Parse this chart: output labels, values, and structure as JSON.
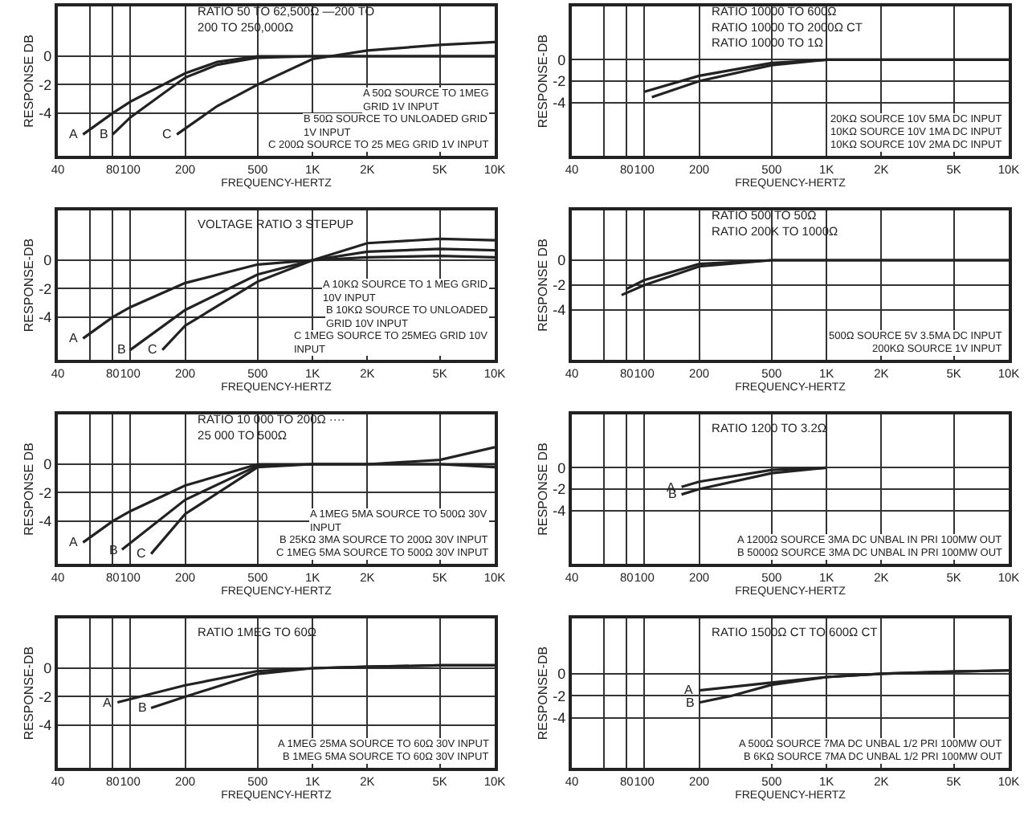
{
  "chart_data": [
    {
      "type": "line",
      "title": "RATIO 50 TO 62,500Ω —200 TO\n200 TO 250,000Ω",
      "xlabel": "FREQUENCY-HERTZ",
      "ylabel": "RESPONSE DB",
      "log": "x",
      "grid": true,
      "legend": false,
      "xlim": [
        40,
        10000
      ],
      "xticks": [
        40,
        {
          "value": 60,
          "label": null
        },
        80,
        100,
        200,
        500,
        {
          "value": 1000,
          "label": "1K"
        },
        {
          "value": 2000,
          "label": "2K"
        },
        {
          "value": 5000,
          "label": "5K"
        },
        {
          "value": 10000,
          "label": "10K"
        }
      ],
      "ylim": [
        -7,
        3.5
      ],
      "yticks": [
        -4,
        -2,
        0
      ],
      "series": [
        {
          "name": "A",
          "color": "#222222",
          "x": [
            55,
            80,
            100,
            200,
            300,
            500,
            1000,
            2000,
            5000,
            10000
          ],
          "values": [
            -5.5,
            -4,
            -3.2,
            -1.2,
            -0.4,
            0,
            0,
            0,
            0,
            0
          ]
        },
        {
          "name": "B",
          "color": "#222222",
          "x": [
            80,
            100,
            200,
            300,
            500,
            1000,
            2000,
            5000,
            10000
          ],
          "values": [
            -5.5,
            -4.3,
            -1.5,
            -0.6,
            -0.1,
            0,
            0,
            0,
            0
          ]
        },
        {
          "name": "C",
          "color": "#222222",
          "x": [
            180,
            300,
            500,
            1000,
            2000,
            5000,
            10000
          ],
          "values": [
            -5.5,
            -3.5,
            -2,
            -0.2,
            0.4,
            0.8,
            1
          ]
        }
      ],
      "annotations": [
        "A 50Ω SOURCE TO 1MEG\nGRID 1V INPUT",
        "B 50Ω SOURCE TO UNLOADED GRID\n1V INPUT",
        "C 200Ω SOURCE TO 25 MEG GRID 1V INPUT"
      ]
    },
    {
      "type": "line",
      "title": "RATIO 10000 TO 600Ω\nRATIO 10000 TO 2000Ω CT\nRATIO 10000 TO 1Ω",
      "xlabel": "FREQUENCY-HERTZ",
      "ylabel": "RESPONSE-DB",
      "log": "x",
      "grid": true,
      "legend": false,
      "xlim": [
        40,
        10000
      ],
      "xticks": [
        40,
        {
          "value": 60,
          "label": null
        },
        80,
        100,
        200,
        500,
        {
          "value": 1000,
          "label": "1K"
        },
        {
          "value": 2000,
          "label": "2K"
        },
        {
          "value": 5000,
          "label": "5K"
        },
        {
          "value": 10000,
          "label": "10K"
        }
      ],
      "ylim": [
        -9,
        5
      ],
      "yticks": [
        -4,
        -2,
        0
      ],
      "series": [
        {
          "color": "#222222",
          "x": [
            100,
            200,
            500,
            1000,
            2000,
            5000,
            10000
          ],
          "values": [
            -3,
            -1.5,
            -0.3,
            0,
            0,
            0,
            0
          ]
        },
        {
          "color": "#222222",
          "x": [
            110,
            200,
            500,
            1000,
            2000,
            5000,
            10000
          ],
          "values": [
            -3.5,
            -2,
            -0.5,
            0,
            0,
            0,
            0
          ]
        }
      ],
      "annotations": [
        "20KΩ SOURCE 10V 5MA DC INPUT",
        "10KΩ SOURCE 10V 1MA DC INPUT",
        "10KΩ SOURCE 10V 2MA DC INPUT"
      ]
    },
    {
      "type": "line",
      "title": "VOLTAGE RATIO 3 STEPUP",
      "xlabel": "FREQUENCY-HERTZ",
      "ylabel": "RESPONSE-DB",
      "log": "x",
      "grid": true,
      "legend": false,
      "xlim": [
        40,
        10000
      ],
      "xticks": [
        40,
        {
          "value": 60,
          "label": null
        },
        80,
        100,
        200,
        500,
        {
          "value": 1000,
          "label": "1K"
        },
        {
          "value": 2000,
          "label": "2K"
        },
        {
          "value": 5000,
          "label": "5K"
        },
        {
          "value": 10000,
          "label": "10K"
        }
      ],
      "ylim": [
        -7,
        3.5
      ],
      "yticks": [
        -4,
        -2,
        0
      ],
      "series": [
        {
          "name": "A",
          "color": "#222222",
          "x": [
            55,
            80,
            100,
            200,
            500,
            1000,
            2000,
            5000,
            10000
          ],
          "values": [
            -5.5,
            -4,
            -3.3,
            -1.6,
            -0.3,
            0,
            0.2,
            0.3,
            0.2
          ]
        },
        {
          "name": "B",
          "color": "#222222",
          "x": [
            100,
            200,
            500,
            1000,
            2000,
            5000,
            10000
          ],
          "values": [
            -6.3,
            -3.5,
            -1,
            0,
            0.6,
            0.8,
            0.7
          ]
        },
        {
          "name": "C",
          "color": "#222222",
          "x": [
            150,
            200,
            500,
            1000,
            2000,
            5000,
            10000
          ],
          "values": [
            -6.3,
            -4.6,
            -1.5,
            0,
            1.2,
            1.5,
            1.4
          ]
        }
      ],
      "annotations": [
        "A 10KΩ SOURCE TO 1 MEG GRID\n10V INPUT",
        "B 10KΩ SOURCE TO UNLOADED\nGRID 10V INPUT",
        "C 1MEG SOURCE TO 25MEG GRID 10V\nINPUT"
      ]
    },
    {
      "type": "line",
      "title": "RATIO 500 TO 50Ω\nRATIO 200K TO 1000Ω",
      "xlabel": "FREQUENCY-HERTZ",
      "ylabel": "RESPONSE DB",
      "log": "x",
      "grid": true,
      "legend": false,
      "xlim": [
        40,
        10000
      ],
      "xticks": [
        40,
        {
          "value": 60,
          "label": null
        },
        80,
        100,
        200,
        500,
        {
          "value": 1000,
          "label": "1K"
        },
        {
          "value": 2000,
          "label": "2K"
        },
        {
          "value": 5000,
          "label": "5K"
        },
        {
          "value": 10000,
          "label": "10K"
        }
      ],
      "ylim": [
        -8,
        4
      ],
      "yticks": [
        -4,
        -2,
        0
      ],
      "series": [
        {
          "color": "#222222",
          "x": [
            75,
            100,
            200,
            500,
            1000,
            2000,
            5000,
            10000
          ],
          "values": [
            -2.8,
            -2,
            -0.5,
            0,
            0,
            0,
            0,
            0
          ]
        },
        {
          "color": "#222222",
          "x": [
            80,
            100,
            200,
            500,
            1000,
            2000,
            5000,
            10000
          ],
          "values": [
            -2.3,
            -1.6,
            -0.3,
            0,
            0,
            0,
            0,
            0
          ]
        }
      ],
      "annotations": [
        "500Ω SOURCE 5V 3.5MA DC INPUT",
        "200KΩ SOURCE 1V INPUT"
      ]
    },
    {
      "type": "line",
      "title": "RATIO 10 000 TO 200Ω ····\n25 000 TO 500Ω",
      "xlabel": "FREQUENCY-HERTZ",
      "ylabel": "RESPONSE DB",
      "log": "x",
      "grid": true,
      "legend": false,
      "xlim": [
        40,
        10000
      ],
      "xticks": [
        40,
        {
          "value": 60,
          "label": null
        },
        80,
        100,
        200,
        500,
        {
          "value": 1000,
          "label": "1K"
        },
        {
          "value": 2000,
          "label": "2K"
        },
        {
          "value": 5000,
          "label": "5K"
        },
        {
          "value": 10000,
          "label": "10K"
        }
      ],
      "ylim": [
        -7,
        3.5
      ],
      "yticks": [
        -4,
        -2,
        0
      ],
      "series": [
        {
          "name": "A",
          "color": "#222222",
          "x": [
            55,
            80,
            100,
            200,
            500,
            1000,
            2000,
            5000,
            10000
          ],
          "values": [
            -5.5,
            -4,
            -3.3,
            -1.5,
            0,
            0,
            0,
            0,
            -0.2
          ]
        },
        {
          "name": "B",
          "color": "#222222",
          "x": [
            90,
            200,
            500,
            1000,
            2000,
            5000,
            10000
          ],
          "values": [
            -6,
            -2.5,
            -0.1,
            0,
            0,
            0,
            0
          ]
        },
        {
          "name": "C",
          "color": "#222222",
          "x": [
            130,
            200,
            500,
            1000,
            2000,
            5000,
            10000
          ],
          "values": [
            -6.3,
            -3.5,
            -0.2,
            0,
            0,
            0.3,
            1.2
          ]
        }
      ],
      "annotations": [
        "A 1MEG 5MA SOURCE TO 500Ω 30V\nINPUT",
        "B 25KΩ 3MA SOURCE TO 200Ω 30V INPUT",
        "C 1MEG 5MA SOURCE TO 500Ω 30V INPUT"
      ]
    },
    {
      "type": "line",
      "title": "RATIO 1200 TO 3.2Ω",
      "xlabel": "FREQUENCY-HERTZ",
      "ylabel": "RESPONSE DB",
      "log": "x",
      "grid": true,
      "legend": false,
      "xlim": [
        40,
        10000
      ],
      "xticks": [
        40,
        {
          "value": 60,
          "label": null
        },
        80,
        100,
        200,
        500,
        {
          "value": 1000,
          "label": "1K"
        },
        {
          "value": 2000,
          "label": "2K"
        },
        {
          "value": 5000,
          "label": "5K"
        },
        {
          "value": 10000,
          "label": "10K"
        }
      ],
      "ylim": [
        -9,
        5
      ],
      "yticks": [
        -4,
        -2,
        0
      ],
      "series": [
        {
          "name": "A",
          "color": "#222222",
          "x": [
            160,
            200,
            500,
            1000
          ],
          "values": [
            -1.8,
            -1.3,
            -0.2,
            0
          ]
        },
        {
          "name": "B",
          "color": "#222222",
          "x": [
            160,
            200,
            500,
            1000
          ],
          "values": [
            -2.5,
            -2,
            -0.5,
            0
          ]
        }
      ],
      "annotations": [
        "A 1200Ω SOURCE 3MA DC UNBAL IN PRI 100MW OUT",
        "B 5000Ω SOURCE 3MA DC UNBAL IN PRI 100MW OUT"
      ]
    },
    {
      "type": "line",
      "title": "RATIO 1MEG TO 60Ω",
      "xlabel": "FREQUENCY-HERTZ",
      "ylabel": "RESPONSE-DB",
      "log": "x",
      "grid": true,
      "legend": false,
      "xlim": [
        40,
        10000
      ],
      "xticks": [
        40,
        {
          "value": 60,
          "label": null
        },
        80,
        100,
        200,
        500,
        {
          "value": 1000,
          "label": "1K"
        },
        {
          "value": 2000,
          "label": "2K"
        },
        {
          "value": 5000,
          "label": "5K"
        },
        {
          "value": 10000,
          "label": "10K"
        }
      ],
      "ylim": [
        -7,
        3.5
      ],
      "yticks": [
        -4,
        -2,
        0
      ],
      "series": [
        {
          "name": "A",
          "color": "#222222",
          "x": [
            85,
            200,
            500,
            1000,
            2000,
            5000,
            10000
          ],
          "values": [
            -2.4,
            -1.2,
            -0.2,
            0,
            0.1,
            0.2,
            0.2
          ]
        },
        {
          "name": "B",
          "color": "#222222",
          "x": [
            130,
            200,
            500,
            1000,
            2000,
            5000,
            10000
          ],
          "values": [
            -2.8,
            -2,
            -0.4,
            0,
            0.1,
            0.2,
            0.2
          ]
        }
      ],
      "annotations": [
        "A 1MEG 25MA SOURCE TO 60Ω 30V INPUT",
        "B 1MEG 5MA SOURCE TO 60Ω 30V INPUT"
      ]
    },
    {
      "type": "line",
      "title": "RATIO 1500Ω CT TO 600Ω CT",
      "xlabel": "FREQUENCY-HERTZ",
      "ylabel": "RESPONSE-DB",
      "log": "x",
      "grid": true,
      "legend": false,
      "xlim": [
        40,
        10000
      ],
      "xticks": [
        40,
        {
          "value": 60,
          "label": null
        },
        80,
        100,
        200,
        500,
        {
          "value": 1000,
          "label": "1K"
        },
        {
          "value": 2000,
          "label": "2K"
        },
        {
          "value": 5000,
          "label": "5K"
        },
        {
          "value": 10000,
          "label": "10K"
        }
      ],
      "ylim": [
        -8.5,
        5
      ],
      "yticks": [
        -4,
        -2,
        0
      ],
      "series": [
        {
          "name": "A",
          "color": "#222222",
          "x": [
            200,
            500,
            1000,
            2000,
            5000,
            10000
          ],
          "values": [
            -1.5,
            -0.8,
            -0.3,
            0,
            0.2,
            0.3
          ]
        },
        {
          "name": "B",
          "color": "#222222",
          "x": [
            200,
            300,
            500,
            1000,
            2000,
            5000,
            10000
          ],
          "values": [
            -2.6,
            -2,
            -1,
            -0.3,
            0,
            0.2,
            0.3
          ]
        }
      ],
      "annotations": [
        "A 500Ω SOURCE 7MA DC UNBAL 1/2 PRI 100MW OUT",
        "B 6KΩ SOURCE 7MA DC UNBAL 1/2 PRI 100MW OUT"
      ]
    }
  ]
}
